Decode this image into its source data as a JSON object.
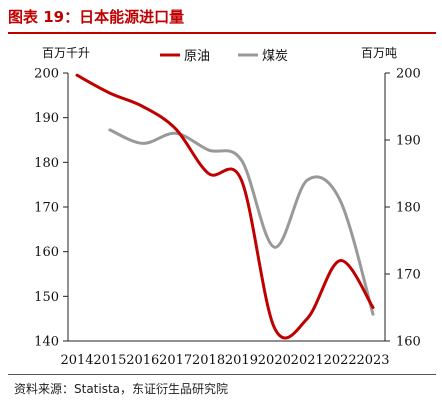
{
  "header": {
    "title": "图表 19：日本能源进口量"
  },
  "footer": {
    "source": "资料来源：Statista，东证衍生品研究院"
  },
  "colors": {
    "title": "#c00000",
    "crude": "#c00000",
    "coal": "#999999"
  },
  "chart_data": {
    "type": "line",
    "x": [
      "2014",
      "2015",
      "2016",
      "2017",
      "2018",
      "2019",
      "2020",
      "2021",
      "2022",
      "2023"
    ],
    "left_axis": {
      "unit": "百万千升",
      "ylim": [
        140,
        200
      ],
      "ticks": [
        140,
        150,
        160,
        170,
        180,
        190,
        200
      ]
    },
    "right_axis": {
      "unit": "百万吨",
      "ylim": [
        160,
        200
      ],
      "ticks": [
        160,
        170,
        180,
        190,
        200
      ]
    },
    "grid": false,
    "legend_position": "top-center",
    "series": [
      {
        "name": "原油",
        "axis": "left",
        "color": "#c00000",
        "values": [
          199.5,
          195.5,
          192.5,
          187.5,
          177.5,
          176,
          143,
          145,
          158,
          147.5
        ]
      },
      {
        "name": "煤炭",
        "axis": "right",
        "color": "#999999",
        "values": [
          null,
          191.5,
          189.5,
          191,
          188.5,
          187,
          174,
          184,
          181,
          164
        ]
      }
    ]
  }
}
